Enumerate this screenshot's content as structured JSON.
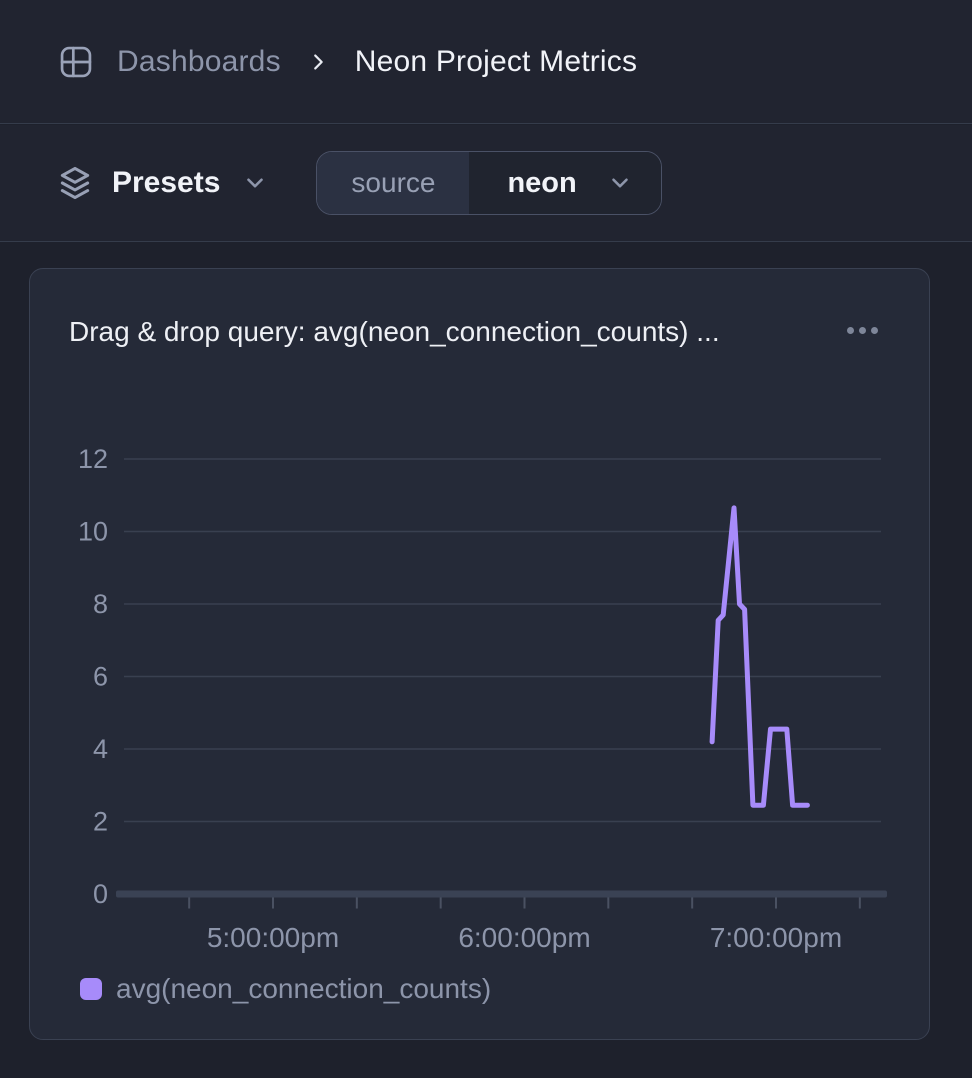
{
  "header": {
    "breadcrumb": {
      "icon": "dashboard-grid-icon",
      "section": "Dashboards",
      "current": "Neon Project Metrics"
    }
  },
  "toolbar": {
    "presets_label": "Presets",
    "presets_icon": "layers-stack-icon",
    "filter": {
      "key": "source",
      "value": "neon"
    }
  },
  "card": {
    "title": "Drag & drop query: avg(neon_connection_counts) ...",
    "menu_icon": "ellipsis-menu-icon"
  },
  "chart_data": {
    "type": "line",
    "title": "Drag & drop query: avg(neon_connection_counts) ...",
    "grid": "horizontal",
    "x_axis": {
      "kind": "time-of-day",
      "range_hours": [
        16.41,
        19.42
      ],
      "labeled_ticks": [
        {
          "t": 17,
          "label": "5:00:00pm"
        },
        {
          "t": 18,
          "label": "6:00:00pm"
        },
        {
          "t": 19,
          "label": "7:00:00pm"
        }
      ],
      "minor_ticks": [
        16.6667,
        17,
        17.3333,
        17.6667,
        18,
        18.3333,
        18.6667,
        19,
        19.3333
      ]
    },
    "y_axis": {
      "ticks": [
        0,
        2,
        4,
        6,
        8,
        10,
        12
      ],
      "range": [
        0,
        12
      ]
    },
    "legend": {
      "position": "bottom-left",
      "items": [
        {
          "label": "avg(neon_connection_counts)",
          "color": "#a78bfa"
        }
      ]
    },
    "series": [
      {
        "name": "avg(neon_connection_counts)",
        "color": "#a78bfa",
        "points": [
          [
            18.746,
            4.2
          ],
          [
            18.77,
            7.55
          ],
          [
            18.79,
            7.7
          ],
          [
            18.833,
            10.65
          ],
          [
            18.855,
            8.0
          ],
          [
            18.875,
            7.85
          ],
          [
            18.908,
            2.45
          ],
          [
            18.95,
            2.45
          ],
          [
            18.978,
            4.55
          ],
          [
            19.043,
            4.55
          ],
          [
            19.066,
            2.45
          ],
          [
            19.125,
            2.45
          ]
        ]
      }
    ]
  },
  "colors": {
    "accent_purple": "#a78bfa",
    "page_background": "#1e212c",
    "bar_background": "#212430",
    "card_background": "#252a38",
    "muted_text": "#8d95aa",
    "grid_line": "#394050",
    "axis_bar": "#3a4254"
  }
}
